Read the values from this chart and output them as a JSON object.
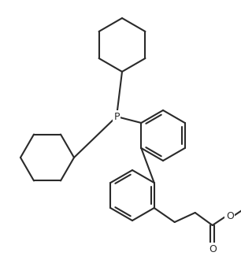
{
  "background_color": "#ffffff",
  "line_color": "#2a2a2a",
  "line_width": 1.5,
  "figsize": [
    3.06,
    3.25
  ],
  "dpi": 100,
  "P_label": "P",
  "O_label": "O"
}
